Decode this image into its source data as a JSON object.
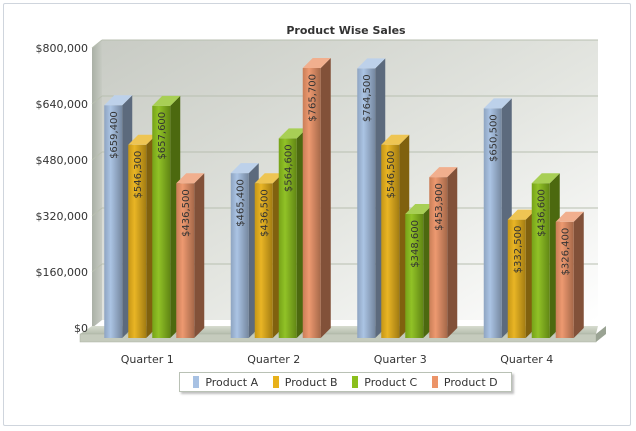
{
  "chart_data": {
    "type": "bar",
    "title": "Product Wise Sales",
    "categories": [
      "Quarter 1",
      "Quarter 2",
      "Quarter 3",
      "Quarter 4"
    ],
    "series": [
      {
        "name": "Product A",
        "color": "#a7c1e3",
        "values": [
          659400,
          465400,
          764500,
          650500
        ],
        "labels": [
          "$659,400",
          "$465,400",
          "$764,500",
          "$650,500"
        ]
      },
      {
        "name": "Product B",
        "color": "#e8b11a",
        "values": [
          546300,
          436500,
          546500,
          332500
        ],
        "labels": [
          "$546,300",
          "$436,500",
          "$546,500",
          "$332,500"
        ]
      },
      {
        "name": "Product C",
        "color": "#8bbf1c",
        "values": [
          657600,
          564600,
          348600,
          436600
        ],
        "labels": [
          "$657,600",
          "$564,600",
          "$348,600",
          "$436,600"
        ]
      },
      {
        "name": "Product D",
        "color": "#ec9468",
        "values": [
          436500,
          765700,
          453900,
          326400
        ],
        "labels": [
          "$436,500",
          "$765,700",
          "$453,900",
          "$326,400"
        ]
      }
    ],
    "y_ticks": [
      {
        "value": 0,
        "label": "$0"
      },
      {
        "value": 160000,
        "label": "$160,000"
      },
      {
        "value": 320000,
        "label": "$320,000"
      },
      {
        "value": 480000,
        "label": "$480,000"
      },
      {
        "value": 640000,
        "label": "$640,000"
      },
      {
        "value": 800000,
        "label": "$800,000"
      }
    ],
    "ylim": [
      0,
      800000
    ],
    "grid": true,
    "legend_position": "bottom-center",
    "xlabel": "",
    "ylabel": ""
  }
}
